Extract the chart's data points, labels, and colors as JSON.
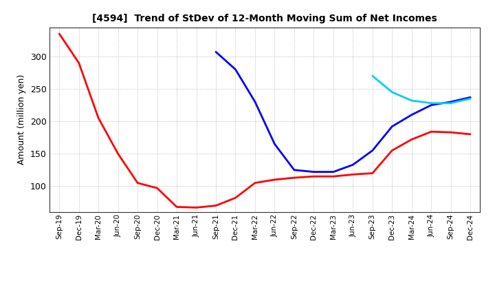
{
  "title": "[4594]  Trend of StDev of 12-Month Moving Sum of Net Incomes",
  "ylabel": "Amount (million yen)",
  "background_color": "#ffffff",
  "grid_color": "#aaaaaa",
  "series": {
    "3 Years": {
      "color": "#ff0000",
      "x": [
        "Sep-19",
        "Dec-19",
        "Mar-20",
        "Jun-20",
        "Sep-20",
        "Dec-20",
        "Mar-21",
        "Jun-21",
        "Sep-21",
        "Dec-21",
        "Mar-22",
        "Jun-22",
        "Sep-22",
        "Dec-22",
        "Mar-23",
        "Jun-23",
        "Sep-23",
        "Dec-23",
        "Mar-24",
        "Jun-24",
        "Sep-24",
        "Dec-24"
      ],
      "y": [
        335,
        290,
        205,
        150,
        105,
        97,
        68,
        67,
        70,
        82,
        105,
        110,
        113,
        115,
        115,
        118,
        120,
        155,
        172,
        184,
        183,
        180
      ]
    },
    "5 Years": {
      "color": "#0000ff",
      "x": [
        "Sep-21",
        "Dec-21",
        "Mar-22",
        "Jun-22",
        "Sep-22",
        "Dec-22",
        "Mar-23",
        "Jun-23",
        "Sep-23",
        "Dec-23",
        "Mar-24",
        "Jun-24",
        "Sep-24",
        "Dec-24"
      ],
      "y": [
        307,
        280,
        230,
        165,
        125,
        122,
        122,
        133,
        155,
        192,
        210,
        225,
        230,
        237
      ]
    },
    "7 Years": {
      "color": "#00ccff",
      "x": [
        "Sep-23",
        "Dec-23",
        "Mar-24",
        "Jun-24",
        "Sep-24",
        "Dec-24"
      ],
      "y": [
        270,
        245,
        232,
        228,
        228,
        235
      ]
    },
    "10 Years": {
      "color": "#009900",
      "x": [],
      "y": []
    }
  },
  "ylim": [
    60,
    345
  ],
  "yticks": [
    100,
    150,
    200,
    250,
    300
  ],
  "x_all": [
    "Sep-19",
    "Dec-19",
    "Mar-20",
    "Jun-20",
    "Sep-20",
    "Dec-20",
    "Mar-21",
    "Jun-21",
    "Sep-21",
    "Dec-21",
    "Mar-22",
    "Jun-22",
    "Sep-22",
    "Dec-22",
    "Mar-23",
    "Jun-23",
    "Sep-23",
    "Dec-23",
    "Mar-24",
    "Jun-24",
    "Sep-24",
    "Dec-24"
  ]
}
